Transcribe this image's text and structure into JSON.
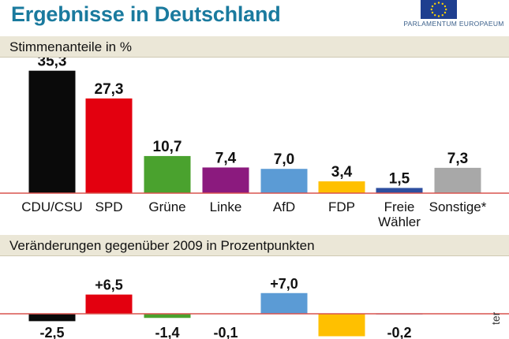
{
  "title": "Ergebnisse in Deutschland",
  "logo_text": "PARLAMENTUM EUROPAEUM",
  "side_text": "ter",
  "colors": {
    "title": "#1a7a9e",
    "baseline": "#d9534f",
    "CDU/CSU": "#0a0a0a",
    "SPD": "#e3000f",
    "Grüne": "#4aa22e",
    "Linke": "#8b1a7e",
    "AfD": "#5b9bd5",
    "FDP": "#ffc000",
    "Freie Wähler": "#2d4fa0",
    "Sonstige*": "#a8a8a8"
  },
  "chart_data": [
    {
      "type": "bar",
      "title": "Stimmenanteile in %",
      "categories": [
        "CDU/CSU",
        "SPD",
        "Grüne",
        "Linke",
        "AfD",
        "FDP",
        "Freie Wähler",
        "Sonstige*"
      ],
      "category_lines": [
        [
          "CDU/CSU"
        ],
        [
          "SPD"
        ],
        [
          "Grüne"
        ],
        [
          "Linke"
        ],
        [
          "AfD"
        ],
        [
          "FDP"
        ],
        [
          "Freie",
          "Wähler"
        ],
        [
          "Sonstige*"
        ]
      ],
      "values": [
        35.3,
        27.3,
        10.7,
        7.4,
        7.0,
        3.4,
        1.5,
        7.3
      ],
      "labels": [
        "35,3",
        "27,3",
        "10,7",
        "7,4",
        "7,0",
        "3,4",
        "1,5",
        "7,3"
      ],
      "ylim": [
        0,
        40
      ],
      "grid": false
    },
    {
      "type": "bar",
      "title": "Veränderungen gegenüber 2009 in Prozentpunkten",
      "categories": [
        "CDU/CSU",
        "SPD",
        "Grüne",
        "Linke",
        "AfD",
        "FDP",
        "Freie Wähler",
        "Sonstige*"
      ],
      "values": [
        -2.5,
        6.5,
        -1.4,
        -0.1,
        7.0,
        -7.6,
        -0.2,
        0
      ],
      "labels": [
        "-2,5",
        "+6,5",
        "-1,4",
        "-0,1",
        "+7,0",
        "",
        "-0,2",
        ""
      ],
      "grid": false
    }
  ]
}
